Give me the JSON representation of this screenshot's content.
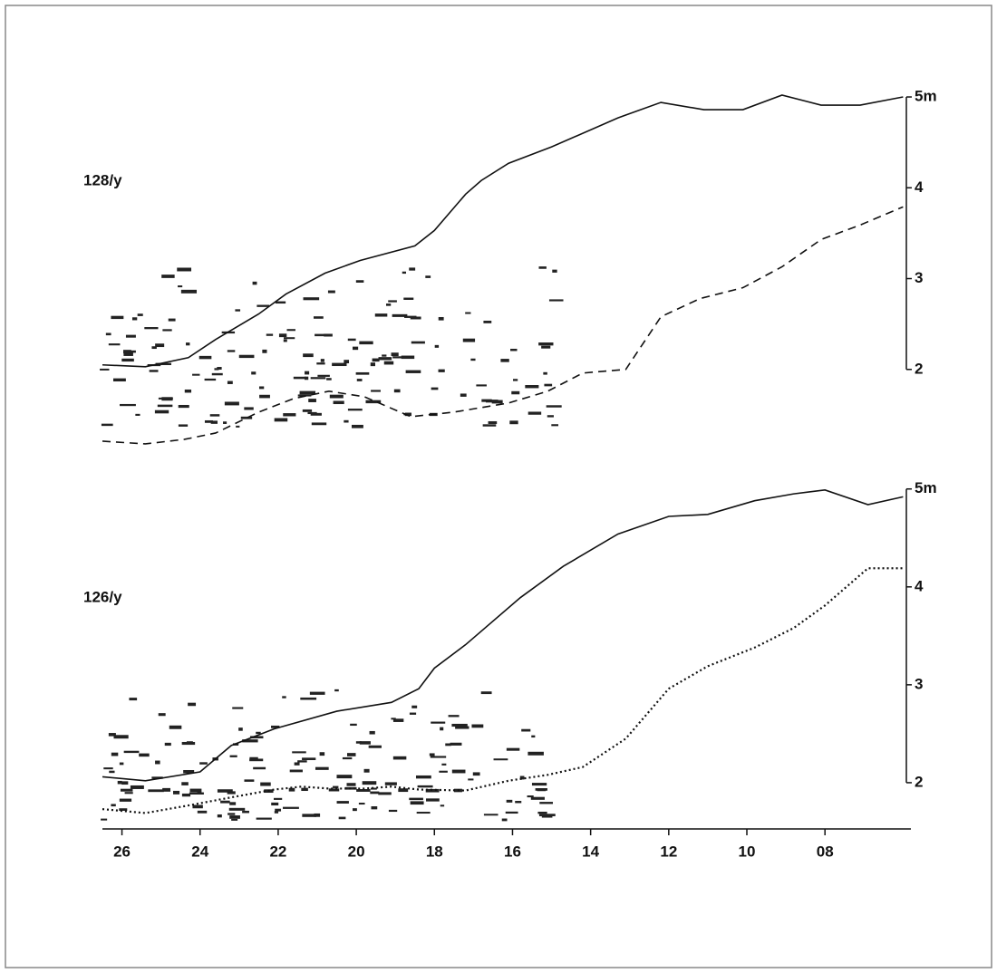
{
  "chart_data": [
    {
      "type": "line",
      "label": "128/y",
      "xlim": [
        26.5,
        5.8
      ],
      "ylim": [
        1.1,
        5.1
      ],
      "yticks": [
        {
          "value": 5,
          "label": "5m"
        },
        4,
        3,
        2
      ],
      "series": [
        {
          "color": "#111111",
          "linestyle": "solid",
          "x": [
            26.5,
            25.4,
            24.3,
            23.6,
            22.5,
            21.8,
            20.8,
            19.9,
            18.5,
            18.0,
            17.2,
            16.8,
            16.1,
            15.0,
            13.3,
            12.2,
            11.1,
            10.1,
            9.1,
            8.1,
            7.1,
            6.0
          ],
          "values": [
            2.05,
            2.03,
            2.13,
            2.33,
            2.61,
            2.83,
            3.06,
            3.2,
            3.36,
            3.53,
            3.93,
            4.08,
            4.27,
            4.45,
            4.77,
            4.94,
            4.86,
            4.86,
            5.02,
            4.91,
            4.91,
            5.0
          ]
        },
        {
          "color": "#111111",
          "linestyle": "dashed",
          "x": [
            26.5,
            25.4,
            24.4,
            23.6,
            22.5,
            21.6,
            20.7,
            19.8,
            18.6,
            17.5,
            16.1,
            15.1,
            14.2,
            13.1,
            12.2,
            11.2,
            10.1,
            9.1,
            8.1,
            7.1,
            6.0
          ],
          "values": [
            1.21,
            1.18,
            1.23,
            1.3,
            1.53,
            1.68,
            1.76,
            1.7,
            1.48,
            1.53,
            1.63,
            1.76,
            1.96,
            2.0,
            2.58,
            2.78,
            2.9,
            3.13,
            3.43,
            3.59,
            3.79
          ]
        }
      ]
    },
    {
      "type": "line",
      "label": "126/y",
      "xlim": [
        26.5,
        5.8
      ],
      "ylim": [
        1.62,
        5.09
      ],
      "xticks": [
        26,
        24,
        22,
        20,
        18,
        16,
        14,
        12,
        10,
        {
          "value": 8,
          "label": "08"
        }
      ],
      "yticks": [
        {
          "value": 5,
          "label": "5m"
        },
        4,
        3,
        2
      ],
      "series": [
        {
          "color": "#111111",
          "linestyle": "solid",
          "x": [
            26.5,
            25.4,
            24.0,
            23.2,
            22.1,
            20.5,
            19.1,
            18.4,
            18.0,
            17.2,
            15.8,
            14.7,
            13.3,
            12.0,
            11.0,
            9.8,
            8.8,
            8.0,
            6.9,
            6.0
          ],
          "values": [
            2.06,
            2.02,
            2.11,
            2.38,
            2.55,
            2.73,
            2.82,
            2.96,
            3.17,
            3.41,
            3.89,
            4.21,
            4.54,
            4.72,
            4.74,
            4.88,
            4.95,
            4.99,
            4.84,
            4.92
          ]
        },
        {
          "color": "#111111",
          "linestyle": "dotted",
          "x": [
            26.5,
            25.4,
            24.4,
            23.2,
            22.1,
            21.4,
            20.7,
            19.8,
            19.1,
            18.4,
            17.2,
            16.1,
            15.1,
            14.2,
            13.1,
            12.0,
            11.0,
            9.8,
            8.8,
            8.0,
            6.9,
            6.0
          ],
          "values": [
            1.73,
            1.69,
            1.76,
            1.85,
            1.93,
            1.96,
            1.94,
            1.94,
            1.96,
            1.93,
            1.92,
            2.02,
            2.08,
            2.16,
            2.45,
            2.96,
            3.19,
            3.38,
            3.58,
            3.81,
            4.19,
            4.19
          ]
        }
      ]
    }
  ]
}
